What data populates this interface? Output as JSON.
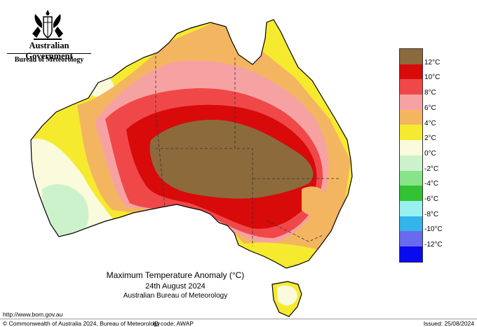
{
  "header": {
    "government": "Australian Government",
    "bureau": "Bureau of Meteorology"
  },
  "map": {
    "title": "Maximum Temperature Anomaly (°C)",
    "date": "24th August 2024",
    "source": "Australian Bureau of Meteorology",
    "region": "Australia",
    "variable": "Maximum temperature anomaly",
    "unit": "°C",
    "hotspot": "Central Australia, 12°C and above"
  },
  "legend": {
    "items": [
      {
        "label": "12°C",
        "color": "#8c6a3c"
      },
      {
        "label": "10°C",
        "color": "#d80a0a"
      },
      {
        "label": "8°C",
        "color": "#f04848"
      },
      {
        "label": "6°C",
        "color": "#f6a2a2"
      },
      {
        "label": "4°C",
        "color": "#f4b560"
      },
      {
        "label": "2°C",
        "color": "#f6ea2e"
      },
      {
        "label": "0°C",
        "color": "#fafadc"
      },
      {
        "label": "-2°C",
        "color": "#ccf2cc"
      },
      {
        "label": "-4°C",
        "color": "#88e488"
      },
      {
        "label": "-6°C",
        "color": "#33c233"
      },
      {
        "label": "-8°C",
        "color": "#99f0f0"
      },
      {
        "label": "-10°C",
        "color": "#33b4ea"
      },
      {
        "label": "-12°C",
        "color": "#6a6aee"
      },
      {
        "label": "",
        "color": "#0a0aee"
      }
    ]
  },
  "footer": {
    "url": "http://www.bom.gov.au",
    "copyright": "© Commonwealth of Australia 2024, Bureau of Meteorology",
    "id_code": "ID code: AWAP",
    "issued": "Issued: 25/08/2024"
  }
}
